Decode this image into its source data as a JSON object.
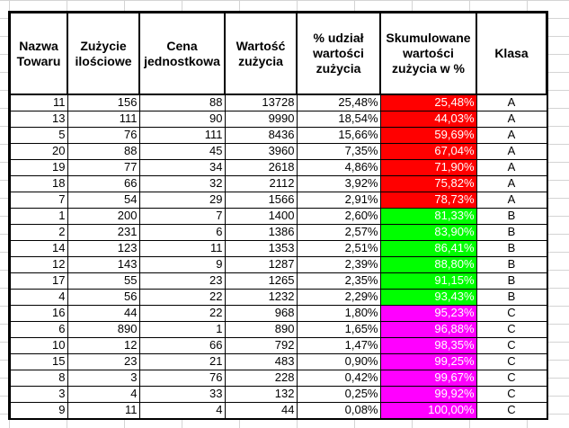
{
  "headers": [
    "Nazwa Towaru",
    "Zużycie ilościowe",
    "Cena jednostkowa",
    "Wartość zużycia",
    "% udział wartości zużycia",
    "Skumulowane wartości zużycia w %",
    "Klasa"
  ],
  "class_colors": {
    "A": "#ff0000",
    "B": "#00ff00",
    "C": "#ff00ff"
  },
  "rows": [
    {
      "name": "11",
      "qty": "156",
      "price": "88",
      "value": "13728",
      "share": "25,48%",
      "cum": "25,48%",
      "cls": "A"
    },
    {
      "name": "13",
      "qty": "111",
      "price": "90",
      "value": "9990",
      "share": "18,54%",
      "cum": "44,03%",
      "cls": "A"
    },
    {
      "name": "5",
      "qty": "76",
      "price": "111",
      "value": "8436",
      "share": "15,66%",
      "cum": "59,69%",
      "cls": "A"
    },
    {
      "name": "20",
      "qty": "88",
      "price": "45",
      "value": "3960",
      "share": "7,35%",
      "cum": "67,04%",
      "cls": "A"
    },
    {
      "name": "19",
      "qty": "77",
      "price": "34",
      "value": "2618",
      "share": "4,86%",
      "cum": "71,90%",
      "cls": "A"
    },
    {
      "name": "18",
      "qty": "66",
      "price": "32",
      "value": "2112",
      "share": "3,92%",
      "cum": "75,82%",
      "cls": "A"
    },
    {
      "name": "7",
      "qty": "54",
      "price": "29",
      "value": "1566",
      "share": "2,91%",
      "cum": "78,73%",
      "cls": "A"
    },
    {
      "name": "1",
      "qty": "200",
      "price": "7",
      "value": "1400",
      "share": "2,60%",
      "cum": "81,33%",
      "cls": "B"
    },
    {
      "name": "2",
      "qty": "231",
      "price": "6",
      "value": "1386",
      "share": "2,57%",
      "cum": "83,90%",
      "cls": "B"
    },
    {
      "name": "14",
      "qty": "123",
      "price": "11",
      "value": "1353",
      "share": "2,51%",
      "cum": "86,41%",
      "cls": "B"
    },
    {
      "name": "12",
      "qty": "143",
      "price": "9",
      "value": "1287",
      "share": "2,39%",
      "cum": "88,80%",
      "cls": "B"
    },
    {
      "name": "17",
      "qty": "55",
      "price": "23",
      "value": "1265",
      "share": "2,35%",
      "cum": "91,15%",
      "cls": "B"
    },
    {
      "name": "4",
      "qty": "56",
      "price": "22",
      "value": "1232",
      "share": "2,29%",
      "cum": "93,43%",
      "cls": "B"
    },
    {
      "name": "16",
      "qty": "44",
      "price": "22",
      "value": "968",
      "share": "1,80%",
      "cum": "95,23%",
      "cls": "C"
    },
    {
      "name": "6",
      "qty": "890",
      "price": "1",
      "value": "890",
      "share": "1,65%",
      "cum": "96,88%",
      "cls": "C"
    },
    {
      "name": "10",
      "qty": "12",
      "price": "66",
      "value": "792",
      "share": "1,47%",
      "cum": "98,35%",
      "cls": "C"
    },
    {
      "name": "15",
      "qty": "23",
      "price": "21",
      "value": "483",
      "share": "0,90%",
      "cum": "99,25%",
      "cls": "C"
    },
    {
      "name": "8",
      "qty": "3",
      "price": "76",
      "value": "228",
      "share": "0,42%",
      "cum": "99,67%",
      "cls": "C"
    },
    {
      "name": "3",
      "qty": "4",
      "price": "33",
      "value": "132",
      "share": "0,25%",
      "cum": "99,92%",
      "cls": "C"
    },
    {
      "name": "9",
      "qty": "11",
      "price": "4",
      "value": "44",
      "share": "0,08%",
      "cum": "100,00%",
      "cls": "C"
    }
  ]
}
